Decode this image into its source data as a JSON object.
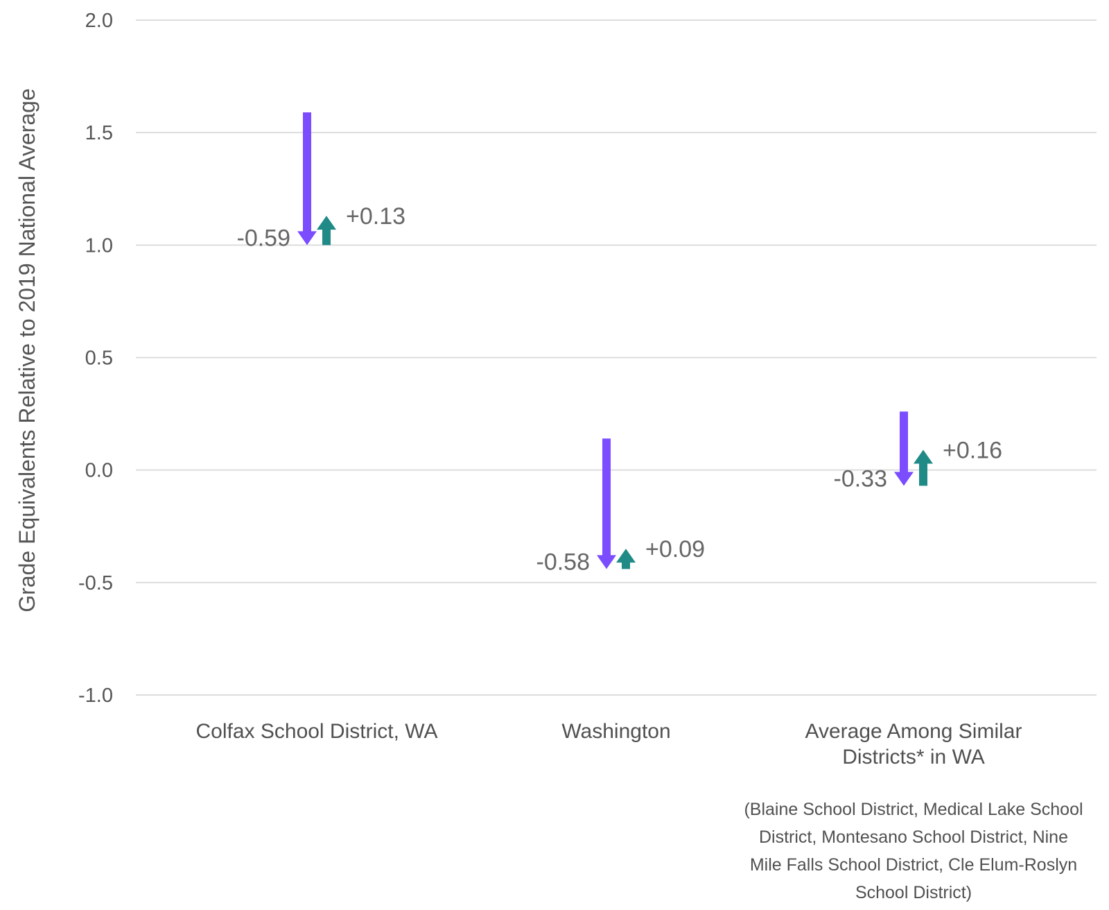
{
  "chart_data": {
    "type": "arrow",
    "ylabel": "Grade Equivalents Relative to 2019 National Average",
    "ylim": [
      -1.0,
      2.0
    ],
    "yticks": [
      2.0,
      1.5,
      1.0,
      0.5,
      0.0,
      -0.5,
      -1.0
    ],
    "ytick_labels": [
      "2.0",
      "1.5",
      "1.0",
      "0.5",
      "0.0",
      "-0.5",
      "-1.0"
    ],
    "grid": true,
    "colors": {
      "decline": "#7b4dff",
      "recovery": "#1f8a86"
    },
    "categories": [
      {
        "label_lines": [
          "Colfax School District, WA"
        ],
        "note_lines": [],
        "decline": {
          "from": 1.59,
          "to": 1.0,
          "label": "-0.59"
        },
        "recovery": {
          "from": 1.0,
          "to": 1.13,
          "label": "+0.13"
        }
      },
      {
        "label_lines": [
          "Washington"
        ],
        "note_lines": [],
        "decline": {
          "from": 0.14,
          "to": -0.44,
          "label": "-0.58"
        },
        "recovery": {
          "from": -0.44,
          "to": -0.35,
          "label": "+0.09"
        }
      },
      {
        "label_lines": [
          "Average Among Similar",
          "Districts* in WA"
        ],
        "note_lines": [
          "(Blaine School District, Medical Lake School",
          "District, Montesano School District, Nine",
          "Mile Falls School District, Cle Elum-Roslyn",
          "School District)"
        ],
        "decline": {
          "from": 0.26,
          "to": -0.07,
          "label": "-0.33"
        },
        "recovery": {
          "from": -0.07,
          "to": 0.09,
          "label": "+0.16"
        }
      }
    ]
  }
}
